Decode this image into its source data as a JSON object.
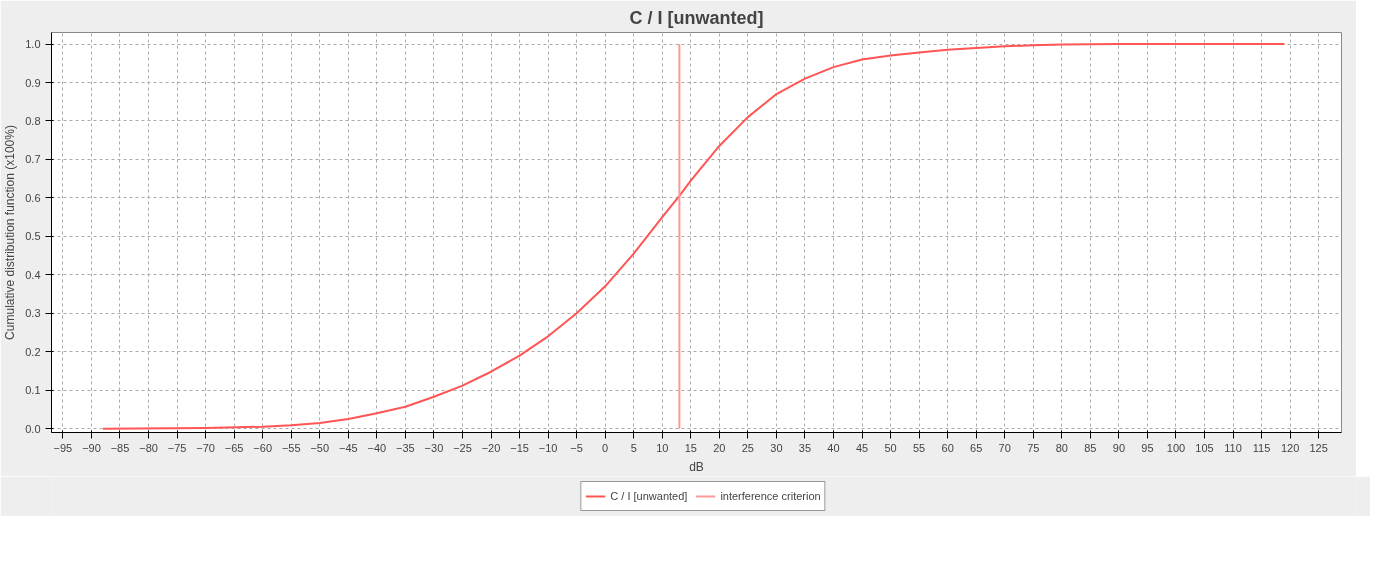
{
  "chart_data": {
    "type": "line",
    "title": "C / I [unwanted]",
    "xlabel": "dB",
    "ylabel": "Cumulative distribution function (x100%)",
    "xlim": [
      -97,
      129
    ],
    "ylim": [
      -0.01,
      1.03
    ],
    "xticks": [
      -95,
      -90,
      -85,
      -80,
      -75,
      -70,
      -65,
      -60,
      -55,
      -50,
      -45,
      -40,
      -35,
      -30,
      -25,
      -20,
      -15,
      -10,
      -5,
      0,
      5,
      10,
      15,
      20,
      25,
      30,
      35,
      40,
      45,
      50,
      55,
      60,
      65,
      70,
      75,
      80,
      85,
      90,
      95,
      100,
      105,
      110,
      115,
      120,
      125
    ],
    "yticks": [
      {
        "value": 0,
        "label": "0.0"
      },
      0.1,
      0.2,
      0.3,
      0.4,
      0.5,
      0.6,
      0.7,
      0.8,
      0.9,
      {
        "value": 1,
        "label": "1.0"
      }
    ],
    "grid": true,
    "legend": "bottom",
    "marker": "none",
    "line_style": "solid",
    "series": [
      {
        "name": "C / I [unwanted]",
        "color": "#ff5555",
        "x": [
          -88,
          -70,
          -60,
          -55,
          -50,
          -45,
          -40,
          -35,
          -30,
          -25,
          -20,
          -15,
          -10,
          -5,
          0,
          5,
          10,
          13,
          15,
          20,
          25,
          30,
          35,
          40,
          45,
          50,
          55,
          60,
          65,
          70,
          75,
          80,
          90,
          100,
          119
        ],
        "values": [
          0,
          0.002,
          0.005,
          0.009,
          0.015,
          0.025,
          0.04,
          0.057,
          0.083,
          0.112,
          0.148,
          0.19,
          0.24,
          0.3,
          0.37,
          0.455,
          0.55,
          0.605,
          0.645,
          0.735,
          0.81,
          0.87,
          0.91,
          0.94,
          0.96,
          0.97,
          0.978,
          0.985,
          0.99,
          0.994,
          0.997,
          0.999,
          1,
          1,
          1
        ]
      },
      {
        "name": "interference criterion",
        "color": "#ff9999",
        "x": [
          13,
          13
        ],
        "values": [
          0,
          1
        ]
      }
    ]
  }
}
